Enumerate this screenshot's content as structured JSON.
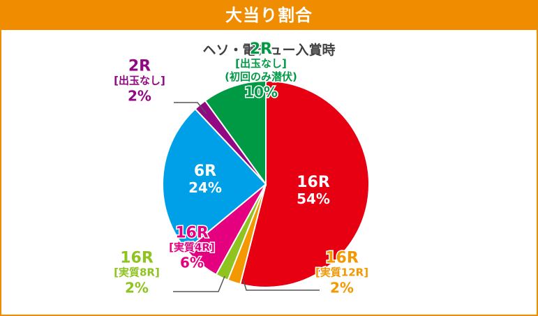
{
  "header": {
    "title": "大当り割合"
  },
  "chart_data": {
    "type": "pie",
    "title": "ヘソ・電チュー入賞時",
    "slices": [
      {
        "label": "16R",
        "sub": "",
        "value": 54,
        "value_text": "54%",
        "color": "#e60012",
        "text_color": "#ffffff"
      },
      {
        "label": "16R",
        "sub": "[実質12R]",
        "value": 2,
        "value_text": "2%",
        "color": "#f39800",
        "text_color": "#f39800"
      },
      {
        "label": "16R",
        "sub": "[実質8R]",
        "value": 2,
        "value_text": "2%",
        "color": "#8fc31f",
        "text_color": "#8fc31f"
      },
      {
        "label": "16R",
        "sub": "[実質4R]",
        "value": 6,
        "value_text": "6%",
        "color": "#e4007f",
        "text_color": "#e4007f"
      },
      {
        "label": "6R",
        "sub": "",
        "value": 24,
        "value_text": "24%",
        "color": "#00a0e9",
        "text_color": "#ffffff"
      },
      {
        "label": "2R",
        "sub": "[出玉なし]",
        "value": 2,
        "value_text": "2%",
        "color": "#920783",
        "text_color": "#920783"
      },
      {
        "label": "2R",
        "sub": "[出玉なし]",
        "sub2": "(初回のみ潜伏)",
        "value": 10,
        "value_text": "10%",
        "color": "#009944",
        "text_color": "#009944"
      }
    ]
  }
}
